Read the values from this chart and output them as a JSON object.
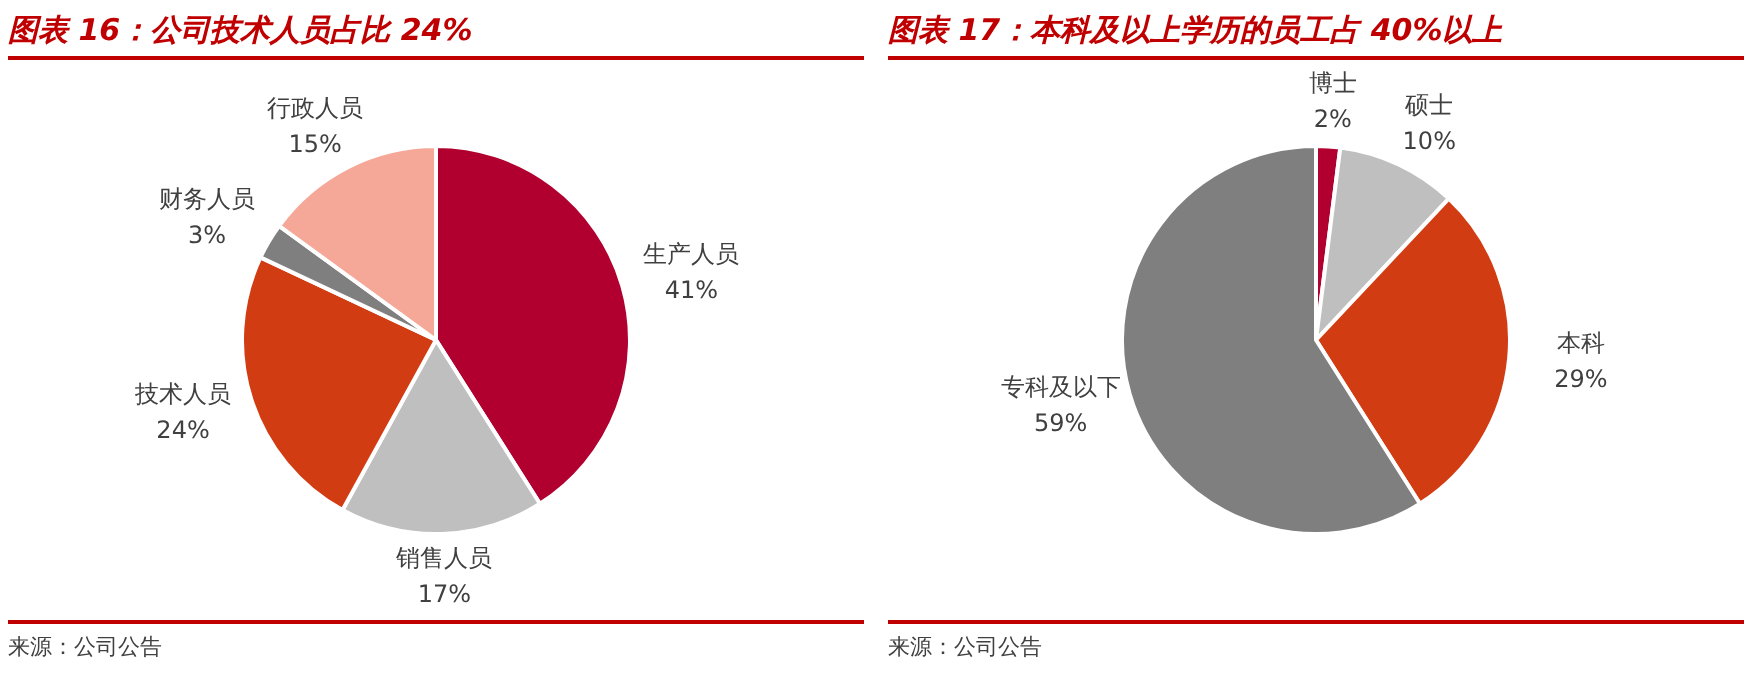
{
  "chart_data": [
    {
      "type": "pie",
      "title": "图表 16：公司技术人员占比 24%",
      "categories": [
        "生产人员",
        "销售人员",
        "技术人员",
        "财务人员",
        "行政人员"
      ],
      "values": [
        41,
        17,
        24,
        3,
        15
      ],
      "value_labels": [
        "41%",
        "17%",
        "24%",
        "3%",
        "15%"
      ],
      "colors": [
        "#b1002f",
        "#bfbfbf",
        "#d23c12",
        "#7f7f7f",
        "#f5a898"
      ],
      "legend": false,
      "annotations": [
        "来源：公司公告"
      ]
    },
    {
      "type": "pie",
      "title": "图表 17：本科及以上学历的员工占 40%以上",
      "categories": [
        "博士",
        "硕士",
        "本科",
        "专科及以下"
      ],
      "values": [
        2,
        10,
        29,
        59
      ],
      "value_labels": [
        "2%",
        "10%",
        "29%",
        "59%"
      ],
      "colors": [
        "#b1002f",
        "#bfbfbf",
        "#d23c12",
        "#7f7f7f"
      ],
      "legend": false,
      "annotations": [
        "来源：公司公告"
      ]
    }
  ]
}
